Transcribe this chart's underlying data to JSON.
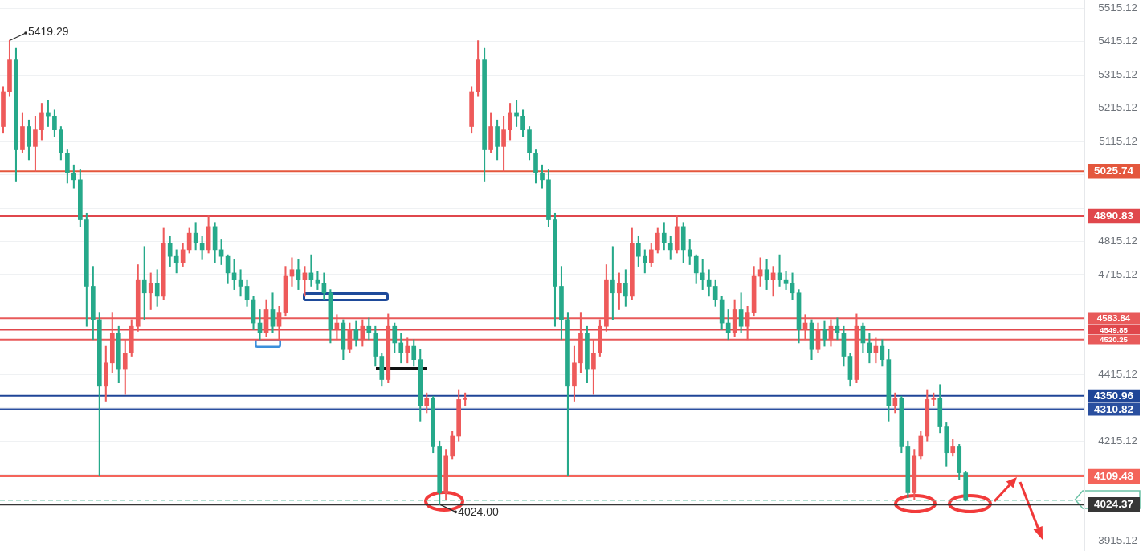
{
  "chart_data": {
    "type": "candlestick",
    "categories": [
      null,
      null,
      null,
      null,
      null,
      null,
      null,
      null,
      null,
      null,
      null,
      null,
      null,
      null,
      null,
      null,
      null,
      null,
      null,
      null,
      null,
      null,
      null,
      null,
      null,
      null,
      null,
      null,
      null,
      null,
      null,
      null,
      null,
      null,
      null,
      null,
      null,
      null,
      null,
      null,
      null,
      null,
      null,
      null,
      null,
      null,
      null,
      null,
      null,
      null,
      null,
      null,
      null,
      null,
      null,
      null,
      null,
      null,
      null,
      null,
      null,
      null,
      null,
      null,
      null,
      null,
      null,
      null,
      null,
      null,
      null,
      null,
      null,
      null,
      null,
      null,
      null,
      null,
      null,
      null,
      null,
      null,
      null,
      null,
      null,
      null,
      null,
      null,
      null,
      null,
      null,
      null,
      null,
      null,
      null,
      null,
      null,
      null,
      null,
      null,
      null,
      null,
      null,
      null,
      null,
      null,
      null,
      null,
      null,
      null,
      null,
      null,
      null,
      null,
      null,
      null,
      null,
      null,
      null,
      null,
      null,
      null,
      null,
      null,
      null,
      null,
      null,
      null,
      null,
      null,
      null,
      null,
      null,
      null,
      null,
      null,
      null,
      null,
      null,
      null,
      null,
      null,
      null,
      null,
      null,
      null,
      null,
      null,
      null,
      null,
      null,
      null,
      null,
      null,
      null,
      null,
      null,
      null,
      null,
      null,
      null,
      null,
      null,
      null,
      null,
      null,
      null,
      null,
      null
    ],
    "ohlc": [
      [
        5160,
        5280,
        5140,
        5265
      ],
      [
        5265,
        5419.29,
        5250,
        5360
      ],
      [
        5360,
        5395,
        4996,
        5090
      ],
      [
        5090,
        5200,
        5080,
        5160
      ],
      [
        5160,
        5180,
        5060,
        5100
      ],
      [
        5100,
        5190,
        5025,
        5150
      ],
      [
        5150,
        5230,
        5120,
        5200
      ],
      [
        5200,
        5240,
        5160,
        5190
      ],
      [
        5190,
        5210,
        5130,
        5150
      ],
      [
        5150,
        5160,
        5060,
        5080
      ],
      [
        5080,
        5090,
        4990,
        5020
      ],
      [
        5020,
        5045,
        4975,
        5000
      ],
      [
        5000,
        5030,
        4860,
        4880
      ],
      [
        4880,
        4900,
        4560,
        4680
      ],
      [
        4680,
        4740,
        4520,
        4580
      ],
      [
        4580,
        4600,
        4110,
        4380
      ],
      [
        4380,
        4500,
        4335,
        4450
      ],
      [
        4450,
        4600,
        4420,
        4540
      ],
      [
        4540,
        4560,
        4390,
        4430
      ],
      [
        4430,
        4520,
        4355,
        4480
      ],
      [
        4480,
        4580,
        4470,
        4560
      ],
      [
        4560,
        4745,
        4545,
        4700
      ],
      [
        4700,
        4800,
        4580,
        4660
      ],
      [
        4660,
        4720,
        4610,
        4690
      ],
      [
        4690,
        4730,
        4620,
        4650
      ],
      [
        4650,
        4855,
        4640,
        4810
      ],
      [
        4810,
        4830,
        4740,
        4770
      ],
      [
        4770,
        4790,
        4720,
        4750
      ],
      [
        4750,
        4810,
        4740,
        4790
      ],
      [
        4790,
        4855,
        4780,
        4840
      ],
      [
        4840,
        4870,
        4790,
        4810
      ],
      [
        4810,
        4830,
        4760,
        4790
      ],
      [
        4790,
        4892,
        4780,
        4860
      ],
      [
        4860,
        4870,
        4750,
        4790
      ],
      [
        4790,
        4820,
        4745,
        4770
      ],
      [
        4770,
        4775,
        4690,
        4720
      ],
      [
        4720,
        4760,
        4670,
        4700
      ],
      [
        4700,
        4730,
        4650,
        4680
      ],
      [
        4680,
        4700,
        4620,
        4640
      ],
      [
        4640,
        4650,
        4550,
        4570
      ],
      [
        4570,
        4610,
        4520,
        4540
      ],
      [
        4540,
        4640,
        4530,
        4610
      ],
      [
        4610,
        4660,
        4540,
        4560
      ],
      [
        4560,
        4620,
        4520,
        4600
      ],
      [
        4600,
        4740,
        4590,
        4710
      ],
      [
        4710,
        4766,
        4680,
        4730
      ],
      [
        4730,
        4760,
        4670,
        4700
      ],
      [
        4700,
        4740,
        4650,
        4720
      ],
      [
        4720,
        4775,
        4680,
        4700
      ],
      [
        4700,
        4725,
        4670,
        4690
      ],
      [
        4690,
        4720,
        4640,
        4660
      ],
      [
        4660,
        4670,
        4510,
        4550
      ],
      [
        4550,
        4595,
        4520,
        4570
      ],
      [
        4570,
        4580,
        4460,
        4490
      ],
      [
        4490,
        4570,
        4480,
        4550
      ],
      [
        4550,
        4575,
        4500,
        4520
      ],
      [
        4520,
        4580,
        4500,
        4560
      ],
      [
        4560,
        4585,
        4520,
        4540
      ],
      [
        4540,
        4560,
        4440,
        4470
      ],
      [
        4470,
        4480,
        4380,
        4400
      ],
      [
        4400,
        4597,
        4390,
        4560
      ],
      [
        4560,
        4570,
        4480,
        4510
      ],
      [
        4510,
        4540,
        4450,
        4480
      ],
      [
        4480,
        4525,
        4450,
        4500
      ],
      [
        4500,
        4520,
        4440,
        4460
      ],
      [
        4460,
        4490,
        4275,
        4320
      ],
      [
        4320,
        4360,
        4300,
        4345
      ],
      [
        4345,
        4350,
        4180,
        4200
      ],
      [
        4200,
        4215,
        4024,
        4060
      ],
      [
        4060,
        4190,
        4040,
        4170
      ],
      [
        4170,
        4245,
        4160,
        4230
      ],
      [
        4230,
        4370,
        4215,
        4340
      ],
      [
        4340,
        4360,
        4320,
        4345
      ],
      [
        5160,
        5280,
        5140,
        5265
      ],
      [
        5265,
        5418,
        5250,
        5360
      ],
      [
        5360,
        5395,
        4996,
        5090
      ],
      [
        5090,
        5200,
        5080,
        5160
      ],
      [
        5160,
        5180,
        5060,
        5100
      ],
      [
        5100,
        5190,
        5025,
        5150
      ],
      [
        5150,
        5230,
        5120,
        5200
      ],
      [
        5200,
        5240,
        5160,
        5190
      ],
      [
        5190,
        5210,
        5130,
        5150
      ],
      [
        5150,
        5160,
        5060,
        5080
      ],
      [
        5080,
        5090,
        4990,
        5020
      ],
      [
        5020,
        5045,
        4975,
        5000
      ],
      [
        5000,
        5030,
        4860,
        4880
      ],
      [
        4880,
        4900,
        4560,
        4680
      ],
      [
        4680,
        4740,
        4520,
        4580
      ],
      [
        4580,
        4600,
        4110,
        4380
      ],
      [
        4380,
        4500,
        4335,
        4450
      ],
      [
        4450,
        4600,
        4420,
        4540
      ],
      [
        4540,
        4560,
        4390,
        4430
      ],
      [
        4430,
        4520,
        4355,
        4480
      ],
      [
        4480,
        4580,
        4470,
        4560
      ],
      [
        4560,
        4745,
        4545,
        4700
      ],
      [
        4700,
        4800,
        4580,
        4660
      ],
      [
        4660,
        4720,
        4610,
        4690
      ],
      [
        4690,
        4730,
        4620,
        4650
      ],
      [
        4650,
        4855,
        4640,
        4810
      ],
      [
        4810,
        4830,
        4740,
        4770
      ],
      [
        4770,
        4790,
        4720,
        4750
      ],
      [
        4750,
        4810,
        4740,
        4790
      ],
      [
        4790,
        4855,
        4780,
        4840
      ],
      [
        4840,
        4870,
        4790,
        4810
      ],
      [
        4810,
        4830,
        4760,
        4790
      ],
      [
        4790,
        4892,
        4780,
        4860
      ],
      [
        4860,
        4870,
        4750,
        4790
      ],
      [
        4790,
        4820,
        4745,
        4770
      ],
      [
        4770,
        4775,
        4690,
        4720
      ],
      [
        4720,
        4760,
        4670,
        4700
      ],
      [
        4700,
        4730,
        4650,
        4680
      ],
      [
        4680,
        4700,
        4620,
        4640
      ],
      [
        4640,
        4650,
        4550,
        4570
      ],
      [
        4570,
        4610,
        4520,
        4540
      ],
      [
        4540,
        4640,
        4530,
        4610
      ],
      [
        4610,
        4660,
        4540,
        4560
      ],
      [
        4560,
        4620,
        4520,
        4600
      ],
      [
        4600,
        4740,
        4590,
        4710
      ],
      [
        4710,
        4766,
        4680,
        4730
      ],
      [
        4730,
        4760,
        4670,
        4700
      ],
      [
        4700,
        4740,
        4650,
        4720
      ],
      [
        4720,
        4775,
        4680,
        4700
      ],
      [
        4700,
        4725,
        4670,
        4690
      ],
      [
        4690,
        4720,
        4640,
        4660
      ],
      [
        4660,
        4670,
        4510,
        4550
      ],
      [
        4550,
        4595,
        4520,
        4570
      ],
      [
        4570,
        4580,
        4460,
        4490
      ],
      [
        4490,
        4570,
        4480,
        4550
      ],
      [
        4550,
        4575,
        4500,
        4520
      ],
      [
        4520,
        4580,
        4500,
        4560
      ],
      [
        4560,
        4585,
        4520,
        4540
      ],
      [
        4540,
        4560,
        4440,
        4470
      ],
      [
        4470,
        4480,
        4380,
        4400
      ],
      [
        4400,
        4597,
        4390,
        4560
      ],
      [
        4560,
        4570,
        4480,
        4510
      ],
      [
        4510,
        4540,
        4450,
        4480
      ],
      [
        4480,
        4525,
        4450,
        4500
      ],
      [
        4500,
        4520,
        4440,
        4460
      ],
      [
        4460,
        4490,
        4275,
        4320
      ],
      [
        4320,
        4360,
        4300,
        4345
      ],
      [
        4345,
        4350,
        4180,
        4200
      ],
      [
        4200,
        4215,
        4045,
        4060
      ],
      [
        4060,
        4190,
        4040,
        4170
      ],
      [
        4170,
        4245,
        4160,
        4230
      ],
      [
        4230,
        4370,
        4215,
        4340
      ],
      [
        4340,
        4360,
        4320,
        4345
      ],
      [
        4345,
        4385,
        4240,
        4260
      ],
      [
        4260,
        4270,
        4140,
        4180
      ],
      [
        4180,
        4220,
        4170,
        4200
      ],
      [
        4200,
        4205,
        4100,
        4120
      ],
      [
        4120,
        4125,
        4035,
        4037
      ],
      null,
      null,
      null,
      null,
      null,
      null,
      null,
      null,
      null,
      null,
      null,
      null,
      null,
      null,
      null,
      null,
      null,
      null
    ],
    "colors": [
      "#ee5a5a",
      "#ee5a5a",
      "#26a98a",
      "#ee5a5a",
      "#26a98a",
      "#ee5a5a",
      "#ee5a5a",
      "#26a98a",
      "#26a98a",
      "#26a98a",
      "#26a98a",
      "#26a98a",
      "#26a98a",
      "#26a98a",
      "#26a98a",
      "#26a98a",
      "#ee5a5a",
      "#ee5a5a",
      "#26a98a",
      "#ee5a5a",
      "#ee5a5a",
      "#ee5a5a",
      "#26a98a",
      "#ee5a5a",
      "#26a98a",
      "#ee5a5a",
      "#26a98a",
      "#26a98a",
      "#ee5a5a",
      "#ee5a5a",
      "#26a98a",
      "#26a98a",
      "#ee5a5a",
      "#26a98a",
      "#26a98a",
      "#26a98a",
      "#26a98a",
      "#26a98a",
      "#26a98a",
      "#26a98a",
      "#26a98a",
      "#ee5a5a",
      "#26a98a",
      "#ee5a5a",
      "#ee5a5a",
      "#ee5a5a",
      "#26a98a",
      "#ee5a5a",
      "#26a98a",
      "#26a98a",
      "#26a98a",
      "#26a98a",
      "#ee5a5a",
      "#26a98a",
      "#ee5a5a",
      "#26a98a",
      "#ee5a5a",
      "#26a98a",
      "#26a98a",
      "#26a98a",
      "#ee5a5a",
      "#26a98a",
      "#26a98a",
      "#ee5a5a",
      "#26a98a",
      "#26a98a",
      "#ee5a5a",
      "#26a98a",
      "#26a98a",
      "#ee5a5a",
      "#ee5a5a",
      "#ee5a5a",
      "#ee5a5a",
      "#ee5a5a",
      "#ee5a5a",
      "#26a98a",
      "#ee5a5a",
      "#26a98a",
      "#ee5a5a",
      "#ee5a5a",
      "#26a98a",
      "#26a98a",
      "#26a98a",
      "#26a98a",
      "#26a98a",
      "#26a98a",
      "#26a98a",
      "#26a98a",
      "#26a98a",
      "#ee5a5a",
      "#ee5a5a",
      "#26a98a",
      "#ee5a5a",
      "#ee5a5a",
      "#ee5a5a",
      "#26a98a",
      "#ee5a5a",
      "#26a98a",
      "#ee5a5a",
      "#26a98a",
      "#26a98a",
      "#ee5a5a",
      "#ee5a5a",
      "#26a98a",
      "#26a98a",
      "#ee5a5a",
      "#26a98a",
      "#26a98a",
      "#26a98a",
      "#26a98a",
      "#26a98a",
      "#26a98a",
      "#26a98a",
      "#26a98a",
      "#ee5a5a",
      "#26a98a",
      "#ee5a5a",
      "#ee5a5a",
      "#ee5a5a",
      "#26a98a",
      "#ee5a5a",
      "#26a98a",
      "#26a98a",
      "#26a98a",
      "#26a98a",
      "#ee5a5a",
      "#26a98a",
      "#ee5a5a",
      "#26a98a",
      "#ee5a5a",
      "#26a98a",
      "#26a98a",
      "#26a98a",
      "#ee5a5a",
      "#26a98a",
      "#26a98a",
      "#ee5a5a",
      "#26a98a",
      "#26a98a",
      "#ee5a5a",
      "#26a98a",
      "#26a98a",
      "#ee5a5a",
      "#ee5a5a",
      "#ee5a5a",
      "#ee5a5a",
      "#26a98a",
      "#26a98a",
      "#ee5a5a",
      "#26a98a",
      "#26a98a",
      null,
      null,
      null,
      null,
      null,
      null,
      null,
      null,
      null,
      null,
      null,
      null,
      null,
      null,
      null,
      null,
      null,
      null
    ],
    "ylim": [
      3885,
      5540
    ],
    "yticks": [
      3915.12,
      {
        "value": 4015.12,
        "label": null
      },
      {
        "value": 4115.12,
        "label": null
      },
      4215.12,
      {
        "value": 4315.12,
        "label": null
      },
      4415.12,
      {
        "value": 4515.12,
        "label": null
      },
      {
        "value": 4615.12,
        "label": null
      },
      4715.12,
      4815.12,
      {
        "value": 4915.12,
        "label": null
      },
      {
        "value": 5015.12,
        "label": null
      },
      5115.12,
      5215.12,
      5315.12,
      5415.12,
      5515.12
    ],
    "grid": "y",
    "tick_labels": "y",
    "ref_lines": [
      {
        "axis": "y",
        "value": 5025.74,
        "label": "5025.74",
        "color": "#e4573d"
      },
      {
        "axis": "y",
        "value": 4890.83,
        "label": "4890.83",
        "color": "#e0474c"
      },
      {
        "axis": "y",
        "value": 4583.84,
        "label": "4583.84",
        "color": "#e85a5a"
      },
      {
        "axis": "y",
        "value": 4549.85,
        "label": "4549.85",
        "color": "#e0474c"
      },
      {
        "axis": "y",
        "value": 4520.25,
        "label": "4520.25",
        "color": "#e85a5a"
      },
      {
        "axis": "y",
        "value": 4350.96,
        "label": "4350.96",
        "color": "#1f4597"
      },
      {
        "axis": "y",
        "value": 4310.82,
        "label": "4310.82",
        "color": "#2a4f9f"
      },
      {
        "axis": "y",
        "value": 4109.48,
        "label": "4109.48",
        "color": "#f4645a"
      },
      {
        "axis": "y",
        "value": 4024.37,
        "label": "4024.37",
        "color": "#363636"
      },
      {
        "axis": "y",
        "value": 4037,
        "color": "#6cc2a6",
        "line_style": "dashed"
      }
    ],
    "annotations": [
      "5419.29",
      {
        "text": "4024.00",
        "y": 4024
      }
    ]
  }
}
